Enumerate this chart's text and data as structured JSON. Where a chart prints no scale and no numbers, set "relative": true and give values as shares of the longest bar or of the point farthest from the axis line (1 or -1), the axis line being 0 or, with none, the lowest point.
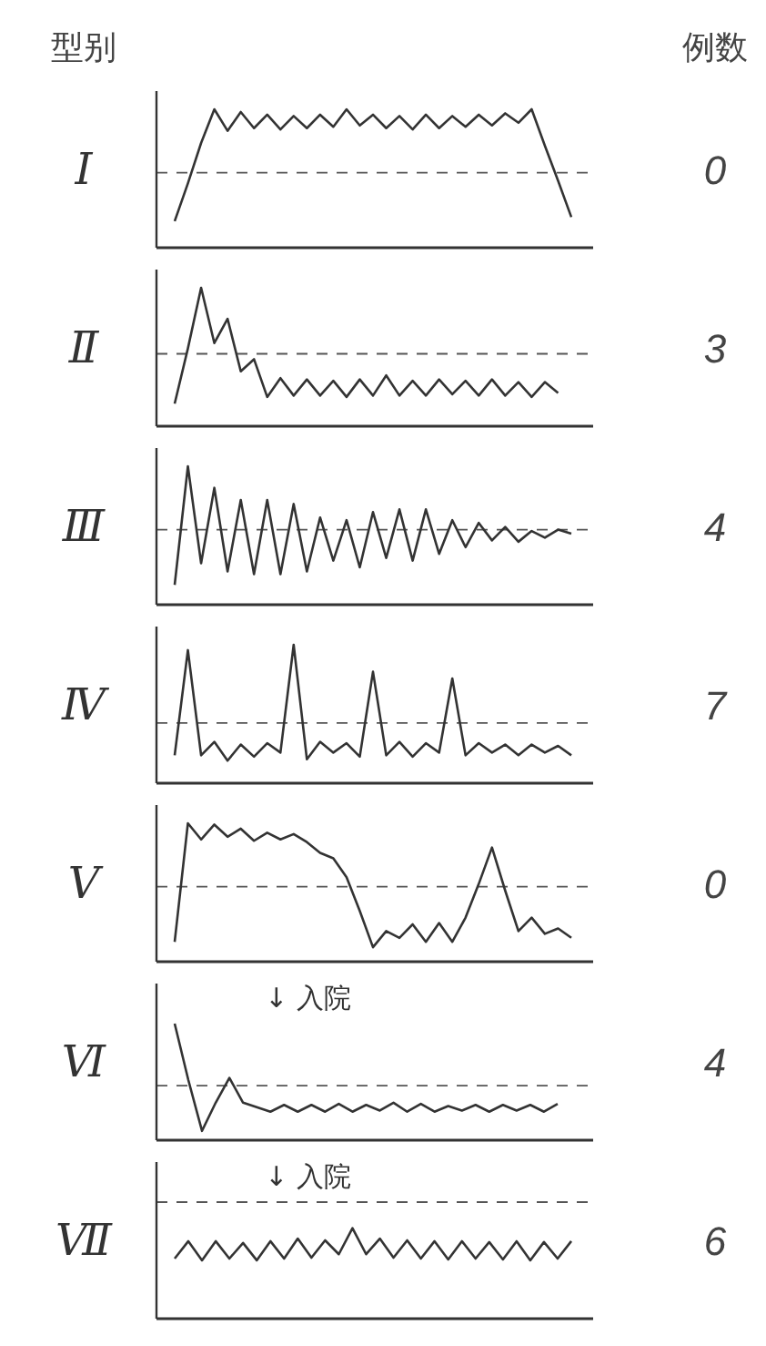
{
  "chart_data": [
    {
      "type": "other",
      "annotations": [
        "型别",
        "例数"
      ]
    },
    {
      "type": "line",
      "title": "Ⅰ",
      "relative": true,
      "annotations": [
        "0"
      ],
      "categories": [
        null,
        null,
        null,
        null,
        null,
        null,
        null,
        null,
        null,
        null,
        null,
        null,
        null,
        null,
        null,
        null,
        null,
        null,
        null,
        null,
        null,
        null,
        null,
        null,
        null,
        null,
        null,
        null,
        null,
        null,
        null
      ],
      "ref_lines": [
        {
          "axis": "y",
          "value": 0.53,
          "line_style": "dashed"
        }
      ],
      "series": [
        {
          "color": "#333333",
          "values": [
            0.17,
            0.45,
            0.75,
            1.0,
            0.84,
            0.98,
            0.86,
            0.96,
            0.85,
            0.95,
            0.86,
            0.96,
            0.87,
            1.0,
            0.88,
            0.96,
            0.86,
            0.95,
            0.85,
            0.96,
            0.86,
            0.95,
            0.87,
            0.96,
            0.88,
            0.97,
            0.9,
            1.0,
            0.73,
            0.47,
            0.2
          ]
        }
      ]
    },
    {
      "type": "line",
      "title": "Ⅱ",
      "relative": true,
      "annotations": [
        "3"
      ],
      "categories": [
        null,
        null,
        null,
        null,
        null,
        null,
        null,
        null,
        null,
        null,
        null,
        null,
        null,
        null,
        null,
        null,
        null,
        null,
        null,
        null,
        null,
        null,
        null,
        null,
        null,
        null,
        null,
        null,
        null,
        null,
        null
      ],
      "ref_lines": [
        {
          "axis": "y",
          "value": 0.51,
          "line_style": "dashed"
        }
      ],
      "series": [
        {
          "color": "#333333",
          "values": [
            0.14,
            0.55,
            1.0,
            0.59,
            0.77,
            0.38,
            0.47,
            0.19,
            0.33,
            0.2,
            0.32,
            0.2,
            0.31,
            0.19,
            0.32,
            0.2,
            0.35,
            0.2,
            0.31,
            0.2,
            0.32,
            0.21,
            0.31,
            0.2,
            0.32,
            0.2,
            0.3,
            0.19,
            0.3,
            0.22,
            null
          ]
        }
      ]
    },
    {
      "type": "line",
      "title": "Ⅲ",
      "relative": true,
      "annotations": [
        "4"
      ],
      "categories": [
        null,
        null,
        null,
        null,
        null,
        null,
        null,
        null,
        null,
        null,
        null,
        null,
        null,
        null,
        null,
        null,
        null,
        null,
        null,
        null,
        null,
        null,
        null,
        null,
        null,
        null,
        null,
        null,
        null,
        null,
        null
      ],
      "ref_lines": [
        {
          "axis": "y",
          "value": 0.53,
          "line_style": "dashed"
        }
      ],
      "series": [
        {
          "color": "#333333",
          "values": [
            0.12,
            1.0,
            0.28,
            0.84,
            0.22,
            0.75,
            0.2,
            0.75,
            0.2,
            0.72,
            0.22,
            0.62,
            0.3,
            0.6,
            0.25,
            0.66,
            0.32,
            0.68,
            0.3,
            0.68,
            0.35,
            0.6,
            0.4,
            0.58,
            0.45,
            0.55,
            0.44,
            0.52,
            0.47,
            0.53,
            0.5
          ]
        }
      ]
    },
    {
      "type": "line",
      "title": "Ⅳ",
      "relative": true,
      "annotations": [
        "7"
      ],
      "categories": [
        null,
        null,
        null,
        null,
        null,
        null,
        null,
        null,
        null,
        null,
        null,
        null,
        null,
        null,
        null,
        null,
        null,
        null,
        null,
        null,
        null,
        null,
        null,
        null,
        null,
        null,
        null,
        null,
        null,
        null,
        null
      ],
      "ref_lines": [
        {
          "axis": "y",
          "value": 0.42,
          "line_style": "dashed"
        }
      ],
      "series": [
        {
          "color": "#333333",
          "values": [
            0.18,
            0.96,
            0.18,
            0.28,
            0.14,
            0.26,
            0.17,
            0.27,
            0.2,
            1.0,
            0.15,
            0.28,
            0.2,
            0.27,
            0.17,
            0.8,
            0.18,
            0.28,
            0.17,
            0.27,
            0.2,
            0.75,
            0.18,
            0.27,
            0.2,
            0.26,
            0.18,
            0.26,
            0.2,
            0.25,
            0.18
          ]
        }
      ]
    },
    {
      "type": "line",
      "title": "Ⅴ",
      "relative": true,
      "annotations": [
        "0"
      ],
      "categories": [
        null,
        null,
        null,
        null,
        null,
        null,
        null,
        null,
        null,
        null,
        null,
        null,
        null,
        null,
        null,
        null,
        null,
        null,
        null,
        null,
        null,
        null,
        null,
        null,
        null,
        null,
        null,
        null,
        null,
        null,
        null
      ],
      "ref_lines": [
        {
          "axis": "y",
          "value": 0.53,
          "line_style": "dashed"
        }
      ],
      "series": [
        {
          "color": "#333333",
          "values": [
            0.12,
            1.0,
            0.88,
            0.99,
            0.9,
            0.96,
            0.87,
            0.93,
            0.88,
            0.92,
            0.86,
            0.78,
            0.74,
            0.6,
            0.35,
            0.08,
            0.2,
            0.15,
            0.25,
            0.12,
            0.26,
            0.12,
            0.3,
            0.55,
            0.82,
            0.5,
            0.2,
            0.3,
            0.18,
            0.22,
            0.15
          ]
        }
      ]
    },
    {
      "type": "line",
      "title": "Ⅵ",
      "relative": true,
      "annotations": [
        "4",
        "↓ 入院"
      ],
      "categories": [
        null,
        null,
        null,
        null,
        null,
        null,
        null,
        null,
        null,
        null,
        null,
        null,
        null,
        null,
        null,
        null,
        null,
        null,
        null,
        null,
        null,
        null,
        null,
        null,
        null,
        null,
        null,
        null,
        null,
        null
      ],
      "ref_lines": [
        {
          "axis": "y",
          "value": 0.45,
          "line_style": "dashed"
        }
      ],
      "series": [
        {
          "color": "#333333",
          "values": [
            1.0,
            0.5,
            0.05,
            0.3,
            0.52,
            0.3,
            0.26,
            0.22,
            0.28,
            0.22,
            0.28,
            0.22,
            0.29,
            0.22,
            0.28,
            0.23,
            0.3,
            0.22,
            0.29,
            0.22,
            0.27,
            0.23,
            0.28,
            0.22,
            0.28,
            0.23,
            0.28,
            0.22,
            0.29,
            null
          ]
        }
      ]
    },
    {
      "type": "line",
      "title": "Ⅶ",
      "relative": true,
      "annotations": [
        "6",
        "↓ 入院"
      ],
      "categories": [
        null,
        null,
        null,
        null,
        null,
        null,
        null,
        null,
        null,
        null,
        null,
        null,
        null,
        null,
        null,
        null,
        null,
        null,
        null,
        null,
        null,
        null,
        null,
        null,
        null,
        null,
        null,
        null,
        null,
        null
      ],
      "ref_lines": [
        {
          "axis": "y",
          "value": 1.3,
          "line_style": "dashed"
        }
      ],
      "series": [
        {
          "color": "#333333",
          "values": [
            0.65,
            0.85,
            0.63,
            0.85,
            0.65,
            0.83,
            0.63,
            0.85,
            0.65,
            0.88,
            0.66,
            0.86,
            0.7,
            1.0,
            0.7,
            0.88,
            0.66,
            0.86,
            0.65,
            0.85,
            0.64,
            0.85,
            0.65,
            0.84,
            0.64,
            0.85,
            0.63,
            0.84,
            0.65,
            0.85
          ]
        }
      ]
    }
  ]
}
